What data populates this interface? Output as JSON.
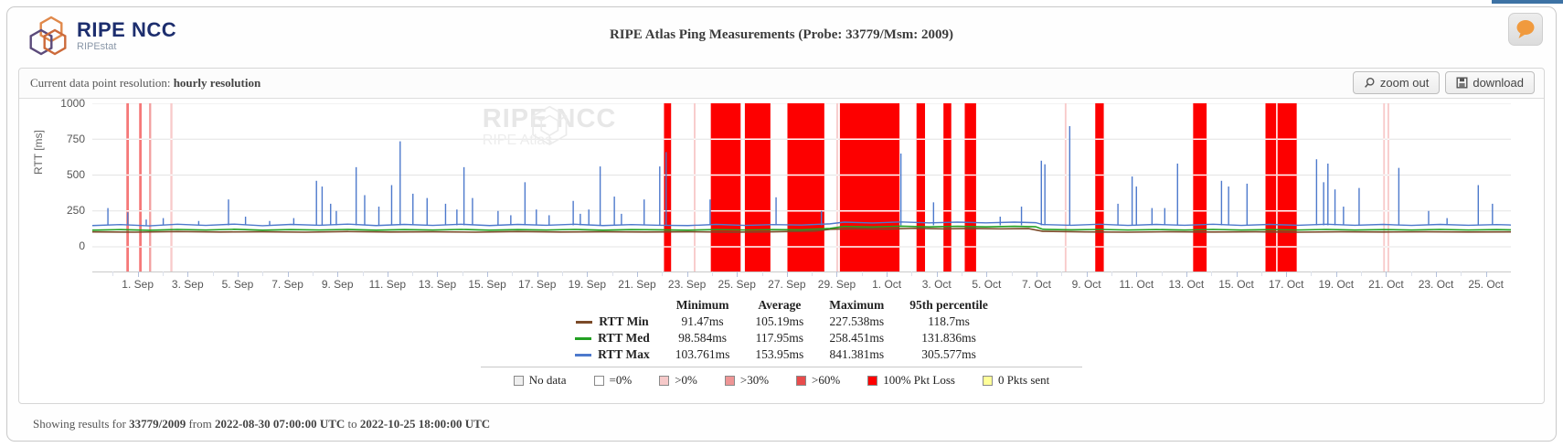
{
  "header": {
    "brand": "RIPE NCC",
    "brand_sub": "RIPEstat",
    "title": "RIPE Atlas Ping Measurements (Probe: 33779/Msm: 2009)"
  },
  "toolbar": {
    "resolution_label": "Current data point resolution:",
    "resolution_value": "hourly resolution",
    "zoom_out_label": "zoom out",
    "download_label": "download"
  },
  "watermark": {
    "line1": "RIPE NCC",
    "line2": "RIPE Atlas"
  },
  "chart_data": {
    "type": "line",
    "ylabel": "RTT [ms]",
    "ylim": [
      0,
      1000
    ],
    "yticks": [
      1000,
      750,
      500,
      250,
      0
    ],
    "grid": "horizontal-only",
    "x_start_pct": 3.2,
    "x_step_pct": 3.52,
    "x_tick_labels": [
      "1. Sep",
      "3. Sep",
      "5. Sep",
      "7. Sep",
      "9. Sep",
      "11. Sep",
      "13. Sep",
      "15. Sep",
      "17. Sep",
      "19. Sep",
      "21. Sep",
      "23. Sep",
      "25. Sep",
      "27. Sep",
      "29. Sep",
      "1. Oct",
      "3. Oct",
      "5. Oct",
      "7. Oct",
      "9. Oct",
      "11. Oct",
      "13. Oct",
      "15. Oct",
      "17. Oct",
      "19. Oct",
      "21. Oct",
      "23. Oct",
      "25. Oct"
    ],
    "series": [
      {
        "name": "RTT Min",
        "color": "#7b4a28",
        "baseline": [
          [
            0,
            104
          ],
          [
            3,
            102
          ],
          [
            6,
            106
          ],
          [
            9,
            103
          ],
          [
            12,
            105
          ],
          [
            15,
            102
          ],
          [
            18,
            106
          ],
          [
            21,
            103
          ],
          [
            24,
            105
          ],
          [
            27,
            102
          ],
          [
            30,
            106
          ],
          [
            33,
            103
          ],
          [
            36,
            105
          ],
          [
            39,
            103
          ],
          [
            42,
            105
          ],
          [
            45,
            102
          ],
          [
            48,
            105
          ],
          [
            51,
            110
          ],
          [
            52,
            122
          ],
          [
            54,
            128
          ],
          [
            56,
            124
          ],
          [
            58,
            129
          ],
          [
            60,
            125
          ],
          [
            62,
            128
          ],
          [
            64,
            125
          ],
          [
            66,
            127
          ],
          [
            67,
            108
          ],
          [
            70,
            104
          ],
          [
            73,
            102
          ],
          [
            76,
            105
          ],
          [
            79,
            103
          ],
          [
            82,
            105
          ],
          [
            85,
            102
          ],
          [
            88,
            105
          ],
          [
            91,
            103
          ],
          [
            94,
            105
          ],
          [
            97,
            103
          ],
          [
            100,
            104
          ]
        ]
      },
      {
        "name": "RTT Med",
        "color": "#22a022",
        "baseline": [
          [
            0,
            116
          ],
          [
            2,
            120
          ],
          [
            4,
            115
          ],
          [
            6,
            121
          ],
          [
            8,
            117
          ],
          [
            10,
            122
          ],
          [
            12,
            116
          ],
          [
            14,
            120
          ],
          [
            16,
            117
          ],
          [
            18,
            121
          ],
          [
            20,
            116
          ],
          [
            22,
            120
          ],
          [
            24,
            117
          ],
          [
            26,
            121
          ],
          [
            28,
            116
          ],
          [
            30,
            120
          ],
          [
            32,
            117
          ],
          [
            34,
            121
          ],
          [
            36,
            116
          ],
          [
            38,
            120
          ],
          [
            40,
            118
          ],
          [
            42,
            116
          ],
          [
            44,
            120
          ],
          [
            46,
            117
          ],
          [
            48,
            120
          ],
          [
            50,
            118
          ],
          [
            52,
            128
          ],
          [
            53,
            142
          ],
          [
            55,
            138
          ],
          [
            57,
            144
          ],
          [
            59,
            139
          ],
          [
            61,
            143
          ],
          [
            63,
            139
          ],
          [
            65,
            143
          ],
          [
            66.5,
            140
          ],
          [
            67,
            122
          ],
          [
            69,
            118
          ],
          [
            71,
            121
          ],
          [
            73,
            117
          ],
          [
            75,
            120
          ],
          [
            77,
            117
          ],
          [
            79,
            121
          ],
          [
            81,
            117
          ],
          [
            83,
            120
          ],
          [
            85,
            117
          ],
          [
            87,
            121
          ],
          [
            89,
            117
          ],
          [
            91,
            120
          ],
          [
            93,
            117
          ],
          [
            95,
            121
          ],
          [
            97,
            117
          ],
          [
            99,
            120
          ],
          [
            100,
            118
          ]
        ]
      },
      {
        "name": "RTT Max",
        "color": "#4d79cc",
        "baseline": [
          [
            0,
            148
          ],
          [
            2,
            155
          ],
          [
            4,
            146
          ],
          [
            6,
            157
          ],
          [
            8,
            149
          ],
          [
            10,
            158
          ],
          [
            12,
            147
          ],
          [
            14,
            156
          ],
          [
            16,
            150
          ],
          [
            18,
            158
          ],
          [
            20,
            148
          ],
          [
            22,
            156
          ],
          [
            24,
            149
          ],
          [
            26,
            157
          ],
          [
            28,
            148
          ],
          [
            30,
            156
          ],
          [
            32,
            150
          ],
          [
            34,
            157
          ],
          [
            36,
            148
          ],
          [
            38,
            155
          ],
          [
            40,
            150
          ],
          [
            42,
            148
          ],
          [
            44,
            156
          ],
          [
            46,
            149
          ],
          [
            48,
            155
          ],
          [
            50,
            152
          ],
          [
            52,
            160
          ],
          [
            53,
            172
          ],
          [
            55,
            166
          ],
          [
            57,
            173
          ],
          [
            59,
            167
          ],
          [
            61,
            172
          ],
          [
            63,
            167
          ],
          [
            65,
            172
          ],
          [
            66.5,
            168
          ],
          [
            67,
            155
          ],
          [
            69,
            150
          ],
          [
            71,
            157
          ],
          [
            73,
            149
          ],
          [
            75,
            156
          ],
          [
            77,
            150
          ],
          [
            79,
            157
          ],
          [
            81,
            149
          ],
          [
            83,
            156
          ],
          [
            85,
            150
          ],
          [
            87,
            157
          ],
          [
            89,
            150
          ],
          [
            91,
            156
          ],
          [
            93,
            149
          ],
          [
            95,
            156
          ],
          [
            97,
            150
          ],
          [
            99,
            155
          ],
          [
            100,
            152
          ]
        ]
      }
    ],
    "rtt_max_spikes": [
      [
        1.1,
        270
      ],
      [
        2.5,
        240
      ],
      [
        3.8,
        190
      ],
      [
        5.0,
        200
      ],
      [
        7.5,
        180
      ],
      [
        9.6,
        330
      ],
      [
        10.8,
        210
      ],
      [
        12.5,
        180
      ],
      [
        14.2,
        200
      ],
      [
        15.8,
        460
      ],
      [
        16.2,
        420
      ],
      [
        16.8,
        300
      ],
      [
        17.2,
        250
      ],
      [
        18.6,
        555
      ],
      [
        19.2,
        360
      ],
      [
        20.2,
        280
      ],
      [
        21.1,
        430
      ],
      [
        21.7,
        735
      ],
      [
        22.6,
        370
      ],
      [
        23.6,
        340
      ],
      [
        24.9,
        300
      ],
      [
        25.7,
        260
      ],
      [
        26.2,
        555
      ],
      [
        26.8,
        340
      ],
      [
        28.6,
        250
      ],
      [
        29.5,
        220
      ],
      [
        30.5,
        450
      ],
      [
        31.3,
        260
      ],
      [
        32.2,
        220
      ],
      [
        33.9,
        320
      ],
      [
        34.4,
        230
      ],
      [
        35.0,
        260
      ],
      [
        35.8,
        560
      ],
      [
        36.8,
        350
      ],
      [
        37.3,
        230
      ],
      [
        38.9,
        330
      ],
      [
        40.0,
        560
      ],
      [
        40.45,
        660
      ],
      [
        43.55,
        330
      ],
      [
        48.2,
        345
      ],
      [
        51.4,
        250
      ],
      [
        57.0,
        650
      ],
      [
        59.3,
        310
      ],
      [
        64.0,
        210
      ],
      [
        65.5,
        280
      ],
      [
        66.9,
        600
      ],
      [
        67.15,
        575
      ],
      [
        68.9,
        841
      ],
      [
        72.3,
        300
      ],
      [
        73.3,
        490
      ],
      [
        73.6,
        420
      ],
      [
        74.7,
        270
      ],
      [
        75.6,
        270
      ],
      [
        76.5,
        580
      ],
      [
        79.6,
        460
      ],
      [
        80.1,
        420
      ],
      [
        81.4,
        440
      ],
      [
        86.3,
        610
      ],
      [
        86.8,
        450
      ],
      [
        87.1,
        580
      ],
      [
        87.6,
        400
      ],
      [
        88.2,
        280
      ],
      [
        89.3,
        410
      ],
      [
        92.1,
        550
      ],
      [
        94.2,
        250
      ],
      [
        95.5,
        200
      ],
      [
        97.7,
        430
      ],
      [
        98.7,
        300
      ]
    ],
    "packet_loss_bands": [
      {
        "start": 2.4,
        "width": 0.18,
        "color": "#f57878"
      },
      {
        "start": 3.3,
        "width": 0.18,
        "color": "#f57878"
      },
      {
        "start": 4.0,
        "width": 0.15,
        "color": "#f2a0a0"
      },
      {
        "start": 5.5,
        "width": 0.15,
        "color": "#f8caca"
      },
      {
        "start": 40.3,
        "width": 0.5,
        "color": "#fd0000"
      },
      {
        "start": 42.4,
        "width": 0.12,
        "color": "#f8caca"
      },
      {
        "start": 43.6,
        "width": 2.1,
        "color": "#fd0000"
      },
      {
        "start": 46.0,
        "width": 1.8,
        "color": "#fd0000"
      },
      {
        "start": 49.0,
        "width": 2.6,
        "color": "#fd0000"
      },
      {
        "start": 52.45,
        "width": 0.12,
        "color": "#f8caca"
      },
      {
        "start": 52.7,
        "width": 4.2,
        "color": "#fd0000"
      },
      {
        "start": 58.1,
        "width": 0.6,
        "color": "#fd0000"
      },
      {
        "start": 60.0,
        "width": 0.55,
        "color": "#fd0000"
      },
      {
        "start": 61.5,
        "width": 0.8,
        "color": "#fd0000"
      },
      {
        "start": 68.55,
        "width": 0.12,
        "color": "#f8caca"
      },
      {
        "start": 70.7,
        "width": 0.6,
        "color": "#fd0000"
      },
      {
        "start": 77.6,
        "width": 0.95,
        "color": "#fd0000"
      },
      {
        "start": 82.7,
        "width": 0.75,
        "color": "#fd0000"
      },
      {
        "start": 83.55,
        "width": 1.35,
        "color": "#fd0000"
      },
      {
        "start": 91.0,
        "width": 0.12,
        "color": "#f8caca"
      },
      {
        "start": 91.3,
        "width": 0.12,
        "color": "#f8caca"
      }
    ]
  },
  "stats_table": {
    "headers": [
      "Minimum",
      "Average",
      "Maximum",
      "95th percentile"
    ],
    "rows": [
      {
        "label": "RTT Min",
        "color": "#7b4a28",
        "values": [
          "91.47ms",
          "105.19ms",
          "227.538ms",
          "118.7ms"
        ]
      },
      {
        "label": "RTT Med",
        "color": "#22a022",
        "values": [
          "98.584ms",
          "117.95ms",
          "258.451ms",
          "131.836ms"
        ]
      },
      {
        "label": "RTT Max",
        "color": "#4d79cc",
        "values": [
          "103.761ms",
          "153.95ms",
          "841.381ms",
          "305.577ms"
        ]
      }
    ]
  },
  "loss_legend": {
    "items": [
      {
        "label": "No data",
        "fill": "#efefef"
      },
      {
        "label": "=0%",
        "fill": "#ffffff"
      },
      {
        "label": ">0%",
        "fill": "#f6c9c9"
      },
      {
        "label": ">30%",
        "fill": "#ee9595"
      },
      {
        "label": ">60%",
        "fill": "#e84c4c"
      },
      {
        "label": "100% Pkt Loss",
        "fill": "#ff0000"
      },
      {
        "label": "0 Pkts sent",
        "fill": "#ffff99"
      }
    ]
  },
  "footer": {
    "prefix": "Showing results for",
    "probe": "33779/2009",
    "from_label": "from",
    "from_value": "2022-08-30 07:00:00 UTC",
    "to_label": "to",
    "to_value": "2022-10-25 18:00:00 UTC"
  }
}
